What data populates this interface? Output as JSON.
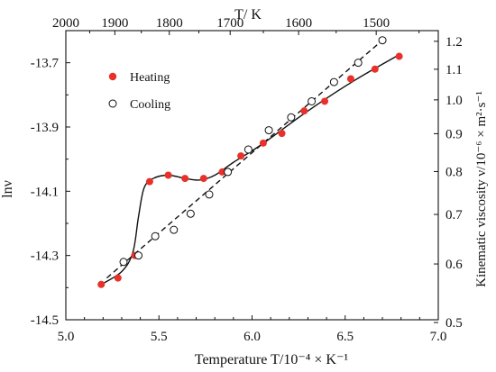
{
  "chart_data": {
    "type": "scatter",
    "xlabel": "Temperature T/10⁻⁴ × K⁻¹",
    "x_top_label": "T/ K",
    "ylabel": "lnν",
    "y_right_label": "Kinematic viscosity ν/10⁻⁶ × m²·s⁻¹",
    "xlim": [
      5.0,
      7.0
    ],
    "ylim": [
      -14.5,
      -13.6
    ],
    "x_ticks": [
      "5.0",
      "5.5",
      "6.0",
      "6.5",
      "7.0"
    ],
    "x_tick_values": [
      5.0,
      5.5,
      6.0,
      6.5,
      7.0
    ],
    "y_ticks": [
      "-13.7",
      "-13.9",
      "-14.1",
      "-14.3",
      "-14.5"
    ],
    "y_tick_values": [
      -13.7,
      -13.9,
      -14.1,
      -14.3,
      -14.5
    ],
    "top_ticks": [
      "2000",
      "1900",
      "1800",
      "1700",
      "1600",
      "1500"
    ],
    "top_tick_values_K": [
      2000,
      1900,
      1800,
      1700,
      1600,
      1500
    ],
    "right_ticks": [
      "0.5",
      "0.6",
      "0.7",
      "0.8",
      "0.9",
      "1.0",
      "1.1",
      "1.2"
    ],
    "right_tick_values": [
      0.5,
      0.6,
      0.7,
      0.8,
      0.9,
      1.0,
      1.1,
      1.2
    ],
    "legend_position": "top-left",
    "series": [
      {
        "name": "Heating",
        "marker": "filled-circle",
        "color": "#e8312a",
        "points": [
          [
            5.19,
            -14.39
          ],
          [
            5.28,
            -14.37
          ],
          [
            5.37,
            -14.3
          ],
          [
            5.45,
            -14.07
          ],
          [
            5.55,
            -14.05
          ],
          [
            5.64,
            -14.06
          ],
          [
            5.74,
            -14.06
          ],
          [
            5.84,
            -14.04
          ],
          [
            5.94,
            -13.99
          ],
          [
            6.06,
            -13.95
          ],
          [
            6.16,
            -13.92
          ],
          [
            6.28,
            -13.85
          ],
          [
            6.39,
            -13.82
          ],
          [
            6.53,
            -13.75
          ],
          [
            6.66,
            -13.72
          ],
          [
            6.79,
            -13.68
          ]
        ]
      },
      {
        "name": "Cooling",
        "marker": "open-circle",
        "color": "#111111",
        "points": [
          [
            5.31,
            -14.32
          ],
          [
            5.39,
            -14.3
          ],
          [
            5.48,
            -14.24
          ],
          [
            5.58,
            -14.22
          ],
          [
            5.67,
            -14.17
          ],
          [
            5.77,
            -14.11
          ],
          [
            5.87,
            -14.04
          ],
          [
            5.98,
            -13.97
          ],
          [
            6.09,
            -13.91
          ],
          [
            6.21,
            -13.87
          ],
          [
            6.32,
            -13.82
          ],
          [
            6.44,
            -13.76
          ],
          [
            6.57,
            -13.7
          ],
          [
            6.7,
            -13.63
          ]
        ]
      }
    ],
    "fit_lines": [
      {
        "series": "Heating",
        "style": "solid",
        "points": [
          [
            5.19,
            -14.39
          ],
          [
            5.3,
            -14.35
          ],
          [
            5.36,
            -14.29
          ],
          [
            5.39,
            -14.18
          ],
          [
            5.42,
            -14.09
          ],
          [
            5.47,
            -14.06
          ],
          [
            5.55,
            -14.05
          ],
          [
            5.64,
            -14.06
          ],
          [
            5.72,
            -14.065
          ],
          [
            5.8,
            -14.05
          ],
          [
            5.9,
            -14.01
          ],
          [
            6.05,
            -13.955
          ],
          [
            6.3,
            -13.85
          ],
          [
            6.55,
            -13.755
          ],
          [
            6.79,
            -13.675
          ]
        ]
      },
      {
        "series": "Cooling",
        "style": "dashed",
        "points": [
          [
            5.22,
            -14.37
          ],
          [
            6.72,
            -13.62
          ]
        ]
      }
    ]
  }
}
